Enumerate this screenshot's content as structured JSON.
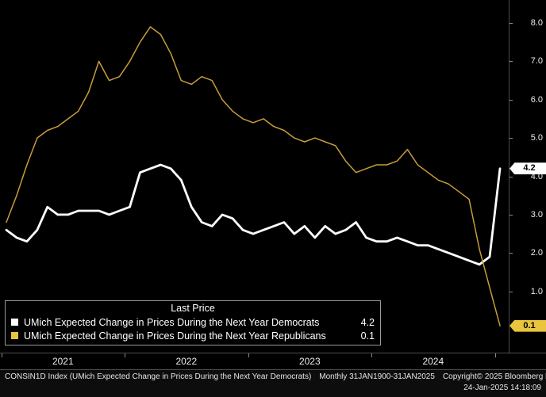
{
  "chart_data": {
    "type": "line",
    "frequency": "Monthly",
    "x_start": "Jan 2021",
    "x_end": "Jan 2025",
    "x_year_labels": [
      "2021",
      "2022",
      "2023",
      "2024"
    ],
    "y_ticks": [
      "8.0",
      "7.0",
      "6.0",
      "5.0",
      "4.0",
      "3.0",
      "2.0",
      "1.0"
    ],
    "ylim": [
      -0.6,
      8.6
    ],
    "grid": false,
    "legend_position": "bottom-left",
    "legend_title": "Last Price",
    "background": "#000000",
    "series": [
      {
        "id": "democrats",
        "name": "UMich Expected Change in Prices During the Next Year Democrats",
        "color": "#ffffff",
        "label_bg": "#ffffff",
        "stroke_width": 2.8,
        "last_price": "4.2",
        "values": [
          2.6,
          2.4,
          2.3,
          2.6,
          3.2,
          3.0,
          3.0,
          3.1,
          3.1,
          3.1,
          3.0,
          3.1,
          3.2,
          4.1,
          4.2,
          4.3,
          4.2,
          3.9,
          3.2,
          2.8,
          2.7,
          3.0,
          2.9,
          2.6,
          2.5,
          2.6,
          2.7,
          2.8,
          2.5,
          2.7,
          2.4,
          2.7,
          2.5,
          2.6,
          2.8,
          2.4,
          2.3,
          2.3,
          2.4,
          2.3,
          2.2,
          2.2,
          2.1,
          2.0,
          1.9,
          1.8,
          1.7,
          1.9,
          4.2
        ]
      },
      {
        "id": "republicans",
        "name": "UMich Expected Change in Prices During the Next Year Republicans",
        "color": "#c79d3a",
        "label_bg": "#e9c43c",
        "stroke_width": 1.5,
        "last_price": "0.1",
        "values": [
          2.8,
          3.5,
          4.3,
          5.0,
          5.2,
          5.3,
          5.5,
          5.7,
          6.2,
          7.0,
          6.5,
          6.6,
          7.0,
          7.5,
          7.9,
          7.7,
          7.2,
          6.5,
          6.4,
          6.6,
          6.5,
          6.0,
          5.7,
          5.5,
          5.4,
          5.5,
          5.3,
          5.2,
          5.0,
          4.9,
          5.0,
          4.9,
          4.8,
          4.4,
          4.1,
          4.2,
          4.3,
          4.3,
          4.4,
          4.7,
          4.3,
          4.1,
          3.9,
          3.8,
          3.6,
          3.4,
          2.1,
          1.1,
          0.1
        ]
      }
    ]
  },
  "footer": {
    "ticker_line": "CONSIN1D Index (UMich Expected Change in Prices During the Next Year Democrats)",
    "periodicity": "Monthly 31JAN1900-31JAN2025",
    "copyright": "Copyright© 2025 Bloomberg Finance L.P.",
    "datetime": "24-Jan-2025 14:18:09"
  }
}
